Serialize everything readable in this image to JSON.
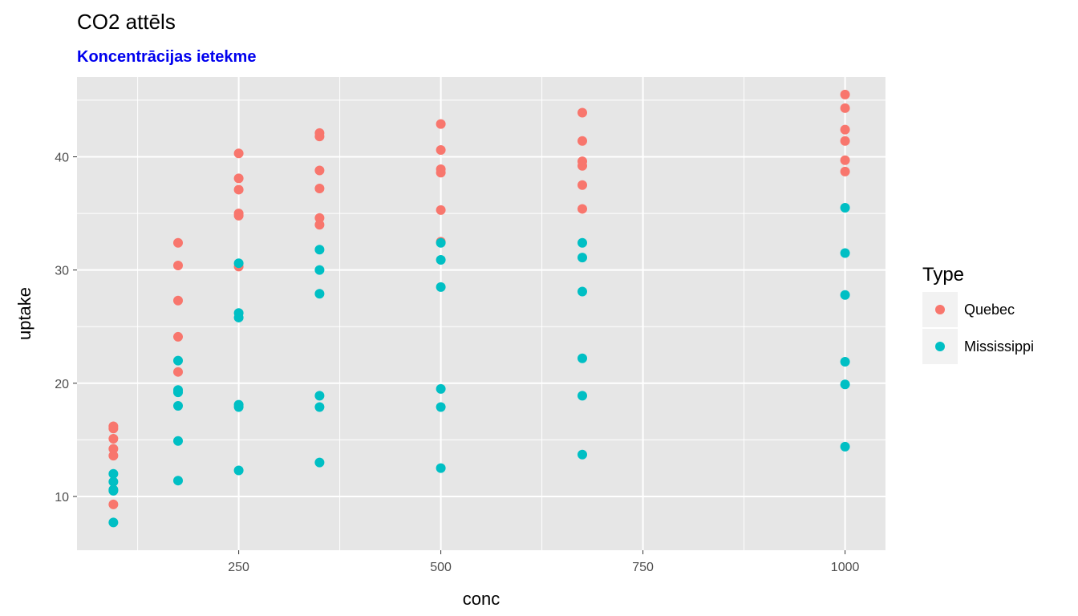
{
  "chart_data": {
    "type": "scatter",
    "title": "CO2 attēls",
    "subtitle": "Koncentrācijas ietekme",
    "subtitle_color": "#0000ee",
    "xlabel": "conc",
    "ylabel": "uptake",
    "xlim": [
      50,
      1050
    ],
    "ylim": [
      5.25,
      47.05
    ],
    "x_ticks": [
      250,
      500,
      750,
      1000
    ],
    "x_tick_labels": [
      "250",
      "500",
      "750",
      "1000"
    ],
    "y_ticks": [
      10,
      20,
      30,
      40
    ],
    "y_tick_labels": [
      "10",
      "20",
      "30",
      "40"
    ],
    "grid": true,
    "legend": {
      "title": "Type",
      "position": "right"
    },
    "panel_background": "#e6e6e6",
    "grid_color": "#ffffff",
    "series": [
      {
        "name": "Quebec",
        "color": "#F8766D",
        "points": [
          [
            95,
            16.0
          ],
          [
            95,
            16.2
          ],
          [
            95,
            15.1
          ],
          [
            95,
            14.2
          ],
          [
            95,
            13.6
          ],
          [
            95,
            9.3
          ],
          [
            175,
            32.4
          ],
          [
            175,
            30.4
          ],
          [
            175,
            27.3
          ],
          [
            175,
            24.1
          ],
          [
            175,
            21.0
          ],
          [
            250,
            40.3
          ],
          [
            250,
            38.1
          ],
          [
            250,
            37.1
          ],
          [
            250,
            35.0
          ],
          [
            250,
            34.8
          ],
          [
            250,
            30.3
          ],
          [
            350,
            42.1
          ],
          [
            350,
            41.8
          ],
          [
            350,
            38.8
          ],
          [
            350,
            37.2
          ],
          [
            350,
            34.6
          ],
          [
            350,
            34.0
          ],
          [
            500,
            42.9
          ],
          [
            500,
            40.6
          ],
          [
            500,
            38.9
          ],
          [
            500,
            38.6
          ],
          [
            500,
            35.3
          ],
          [
            500,
            32.5
          ],
          [
            675,
            43.9
          ],
          [
            675,
            41.4
          ],
          [
            675,
            39.6
          ],
          [
            675,
            39.2
          ],
          [
            675,
            37.5
          ],
          [
            675,
            35.4
          ],
          [
            1000,
            45.5
          ],
          [
            1000,
            44.3
          ],
          [
            1000,
            42.4
          ],
          [
            1000,
            41.4
          ],
          [
            1000,
            39.7
          ],
          [
            1000,
            38.7
          ]
        ]
      },
      {
        "name": "Mississippi",
        "color": "#00BFC4",
        "points": [
          [
            95,
            12.0
          ],
          [
            95,
            11.3
          ],
          [
            95,
            10.6
          ],
          [
            95,
            10.5
          ],
          [
            95,
            7.7
          ],
          [
            175,
            22.0
          ],
          [
            175,
            19.4
          ],
          [
            175,
            19.2
          ],
          [
            175,
            18.0
          ],
          [
            175,
            14.9
          ],
          [
            175,
            11.4
          ],
          [
            250,
            30.6
          ],
          [
            250,
            26.2
          ],
          [
            250,
            25.8
          ],
          [
            250,
            18.1
          ],
          [
            250,
            17.9
          ],
          [
            250,
            12.3
          ],
          [
            350,
            31.8
          ],
          [
            350,
            30.0
          ],
          [
            350,
            27.9
          ],
          [
            350,
            18.9
          ],
          [
            350,
            17.9
          ],
          [
            350,
            13.0
          ],
          [
            500,
            32.4
          ],
          [
            500,
            30.9
          ],
          [
            500,
            28.5
          ],
          [
            500,
            19.5
          ],
          [
            500,
            17.9
          ],
          [
            500,
            12.5
          ],
          [
            675,
            32.4
          ],
          [
            675,
            31.1
          ],
          [
            675,
            28.1
          ],
          [
            675,
            22.2
          ],
          [
            675,
            18.9
          ],
          [
            675,
            13.7
          ],
          [
            1000,
            35.5
          ],
          [
            1000,
            31.5
          ],
          [
            1000,
            27.8
          ],
          [
            1000,
            21.9
          ],
          [
            1000,
            19.9
          ],
          [
            1000,
            14.4
          ]
        ]
      }
    ]
  }
}
